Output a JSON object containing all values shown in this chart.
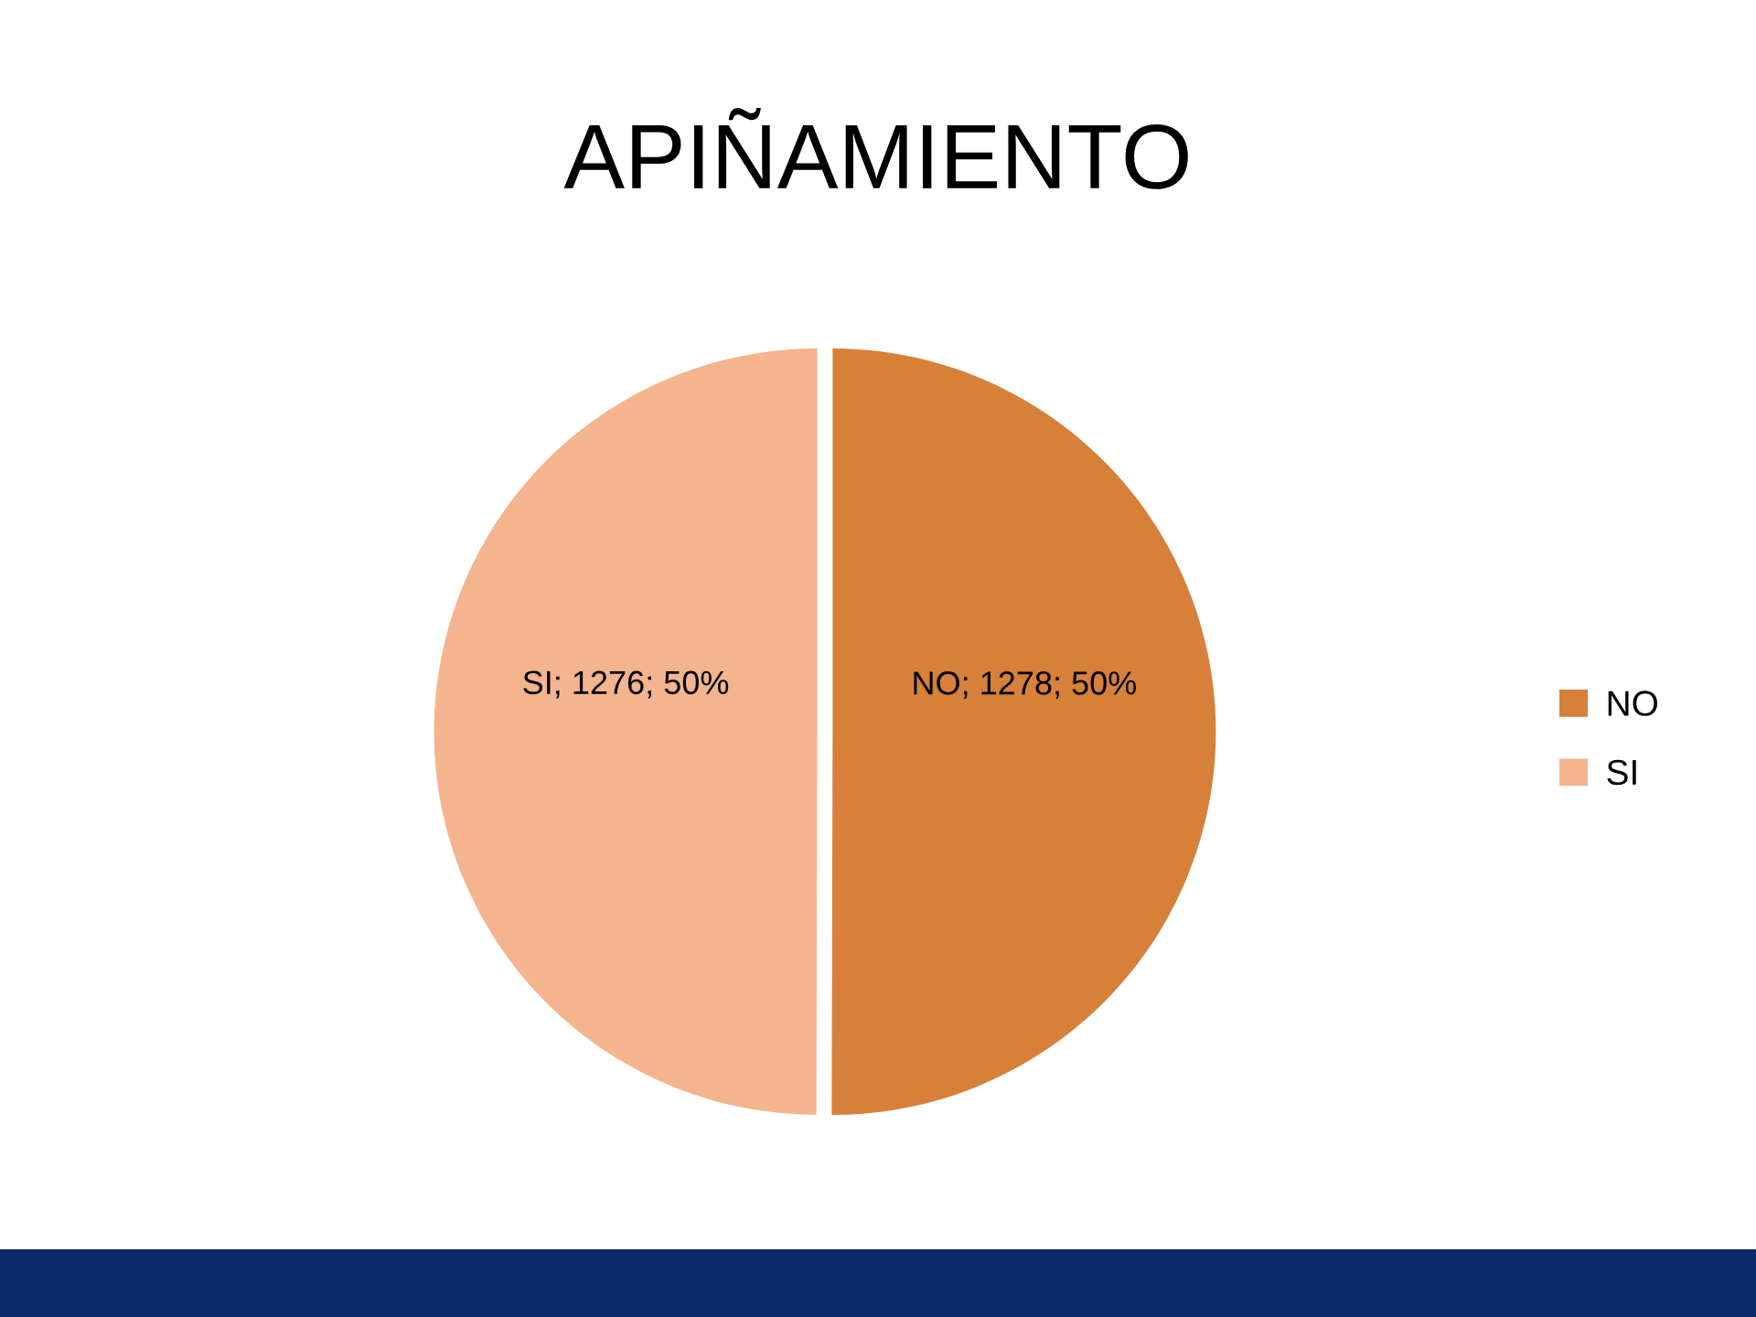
{
  "chart_data": {
    "type": "pie",
    "title": "APIÑAMIENTO",
    "categories": [
      "NO",
      "SI"
    ],
    "values": [
      1278,
      1276
    ],
    "colors": [
      "#d6803a",
      "#f3b48e"
    ],
    "value_labels": [
      "NO; 1278; 50%",
      "SI; 1276; 50%"
    ],
    "legend": "right"
  }
}
